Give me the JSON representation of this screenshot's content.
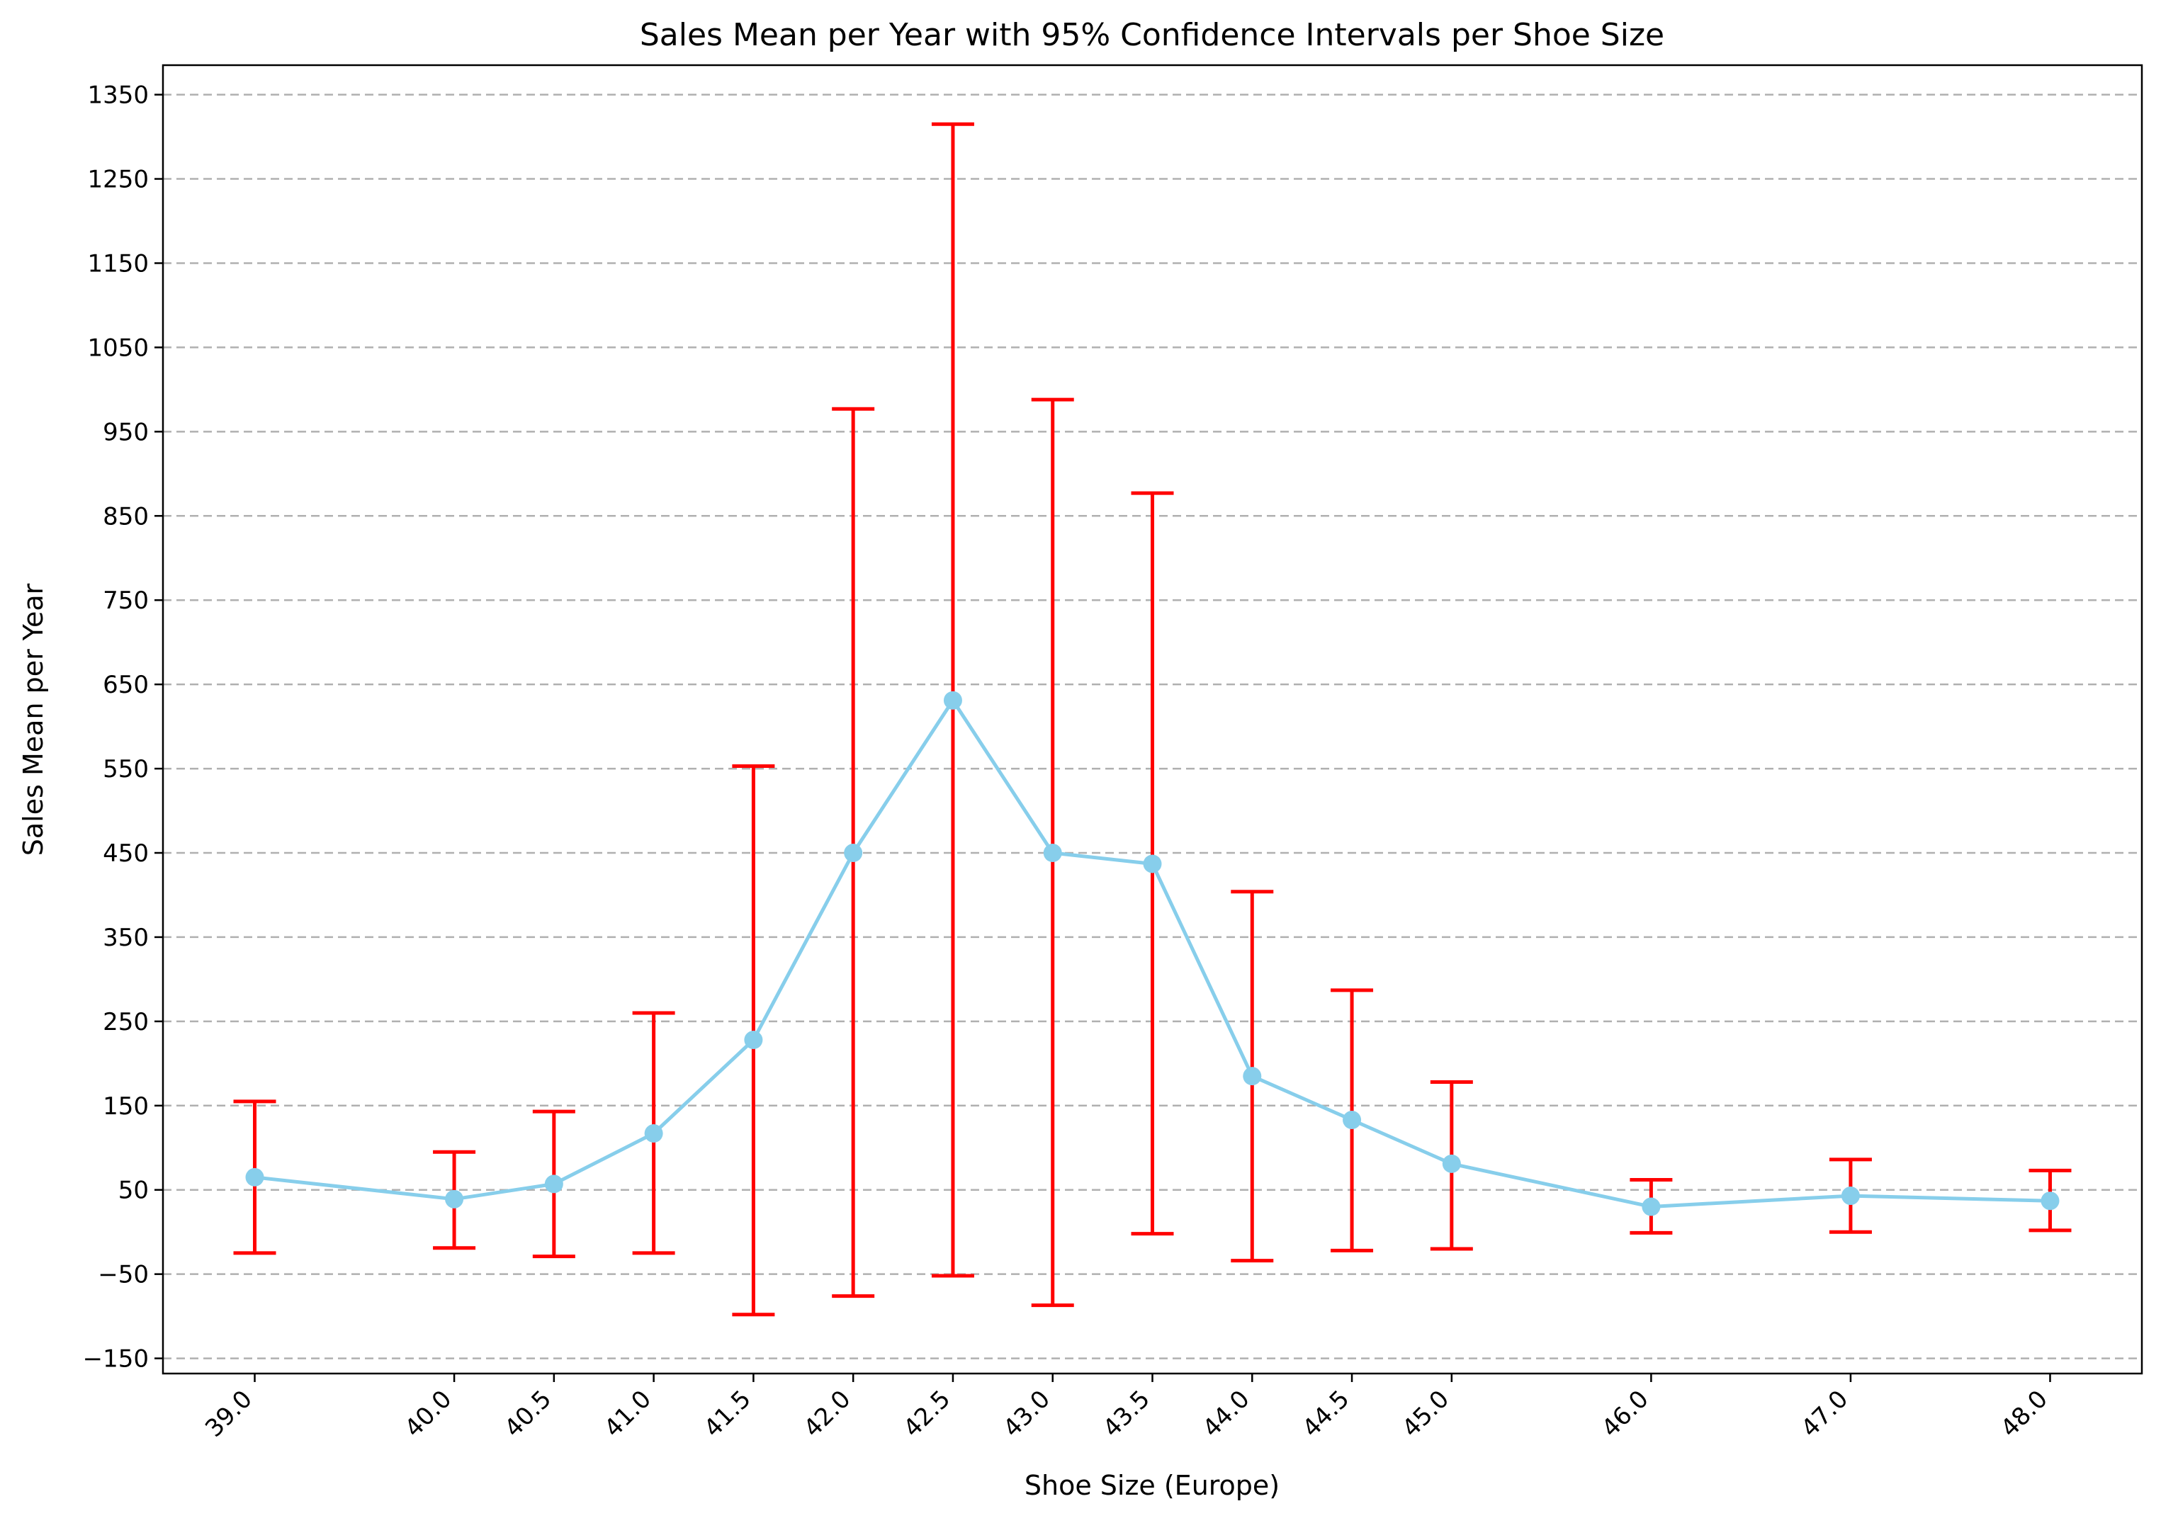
{
  "chart_data": {
    "type": "line",
    "title": "Sales Mean per Year with 95% Confidence Intervals per Shoe Size",
    "xlabel": "Shoe Size (Europe)",
    "ylabel": "Sales Mean per Year",
    "x": [
      39.0,
      40.0,
      40.5,
      41.0,
      41.5,
      42.0,
      42.5,
      43.0,
      43.5,
      44.0,
      44.5,
      45.0,
      46.0,
      47.0,
      48.0
    ],
    "x_tick_labels": [
      "39.0",
      "40.0",
      "40.5",
      "41.0",
      "41.5",
      "42.0",
      "42.5",
      "43.0",
      "43.5",
      "44.0",
      "44.5",
      "45.0",
      "46.0",
      "47.0",
      "48.0"
    ],
    "series": [
      {
        "values": [
          65,
          39,
          57,
          117,
          228,
          450,
          631,
          450,
          437,
          185,
          133,
          81,
          30,
          43,
          37
        ],
        "ci_lower": [
          -25,
          -19,
          -29,
          -25,
          -98,
          -76,
          -52,
          -87,
          -2,
          -34,
          -22,
          -20,
          -1,
          0,
          2
        ],
        "ci_upper": [
          155,
          95,
          143,
          260,
          553,
          977,
          1315,
          988,
          877,
          404,
          287,
          178,
          62,
          86,
          73
        ],
        "color": "#87ceeb",
        "error_color": "#ff0000",
        "marker": "circle"
      }
    ],
    "yticks": [
      -150,
      -50,
      50,
      150,
      250,
      350,
      450,
      550,
      650,
      750,
      850,
      950,
      1050,
      1150,
      1250,
      1350
    ],
    "xlim": [
      38.54,
      48.46
    ],
    "ylim": [
      -168,
      1385
    ],
    "grid": "y-dashed",
    "x_tick_rotation": 45
  }
}
